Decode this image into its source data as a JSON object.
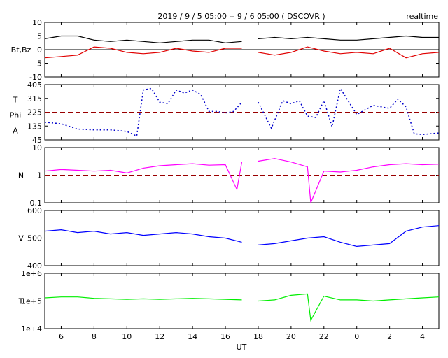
{
  "header": {
    "title": "2019 / 9 / 5  05:00 -- 9 / 6  05:00 ( DSCOVR )",
    "mode": "realtime"
  },
  "x_axis": {
    "label": "UT",
    "tick_labels": [
      "6",
      "8",
      "10",
      "12",
      "14",
      "16",
      "18",
      "20",
      "22",
      "0",
      "2",
      "4"
    ],
    "tick_hours": [
      6,
      8,
      10,
      12,
      14,
      16,
      18,
      20,
      22,
      24,
      26,
      28
    ],
    "range_hours": [
      5,
      29
    ],
    "data_gap_hours": [
      17.3,
      17.7
    ]
  },
  "colors": {
    "bt": "#000000",
    "bz": "#e00000",
    "phi": "#0000cc",
    "n": "#ff00ff",
    "v": "#0000ff",
    "t": "#00ee00",
    "ref_line": "#990000"
  },
  "panels": [
    {
      "id": "mag",
      "label": "Bt,Bz",
      "tick_labels": [
        "10",
        "5",
        "0",
        "-5",
        "-10"
      ],
      "ymin": -10,
      "ymax": 10,
      "ref": 0,
      "ref_style": "solid",
      "log": false
    },
    {
      "id": "phi",
      "label_lines": [
        "T",
        "Phi",
        "A"
      ],
      "tick_labels": [
        "405",
        "315",
        "225",
        "135",
        "45"
      ],
      "ymin": 45,
      "ymax": 405,
      "ref": 225,
      "ref_style": "dashed",
      "log": false
    },
    {
      "id": "n",
      "label": "N",
      "tick_labels": [
        "10",
        "1",
        "0.1"
      ],
      "ymin": 0.1,
      "ymax": 10,
      "ref": 1,
      "ref_style": "dashed",
      "log": true
    },
    {
      "id": "v",
      "label": "V",
      "tick_labels": [
        "600",
        "500",
        "400"
      ],
      "ymin": 400,
      "ymax": 600,
      "ref": null,
      "ref_style": "none",
      "log": false
    },
    {
      "id": "t",
      "label": "T",
      "tick_labels": [
        "1e+6",
        "1e+5",
        "1e+4"
      ],
      "ymin": 10000,
      "ymax": 1000000,
      "ref": 100000,
      "ref_style": "dashed",
      "log": true
    }
  ],
  "chart_data": {
    "type": "line",
    "x_unit": "UT hours since 2019-09-05 00:00",
    "series": [
      {
        "name": "Bt",
        "panel": "mag",
        "x": [
          5,
          6,
          7,
          8,
          9,
          10,
          11,
          12,
          13,
          14,
          15,
          16,
          17,
          18,
          19,
          20,
          21,
          22,
          23,
          24,
          25,
          26,
          27,
          28,
          29
        ],
        "y": [
          4.0,
          5.0,
          5.0,
          3.5,
          3.0,
          3.5,
          3.0,
          2.5,
          3.0,
          3.5,
          3.5,
          2.5,
          3.0,
          4.0,
          4.5,
          4.0,
          4.5,
          4.0,
          3.5,
          3.5,
          4.0,
          4.5,
          5.0,
          4.5,
          4.5
        ]
      },
      {
        "name": "Bz",
        "panel": "mag",
        "x": [
          5,
          6,
          7,
          8,
          9,
          10,
          11,
          12,
          13,
          14,
          15,
          16,
          17,
          18,
          19,
          20,
          21,
          22,
          23,
          24,
          25,
          26,
          27,
          28,
          29
        ],
        "y": [
          -3.0,
          -2.5,
          -2.0,
          1.0,
          0.5,
          -1.0,
          -1.5,
          -1.0,
          0.5,
          -0.5,
          -1.0,
          0.5,
          0.5,
          -1.0,
          -2.0,
          -1.0,
          1.0,
          -0.5,
          -1.5,
          -1.0,
          -1.5,
          0.5,
          -3.0,
          -1.5,
          -1.0
        ]
      },
      {
        "name": "Phi",
        "panel": "phi",
        "x": [
          5,
          6,
          7,
          8,
          9,
          10,
          10.6,
          11,
          11.5,
          12,
          12.5,
          13,
          13.5,
          14,
          14.5,
          15,
          15.5,
          16,
          16.5,
          17,
          18,
          18.8,
          19.5,
          20,
          20.5,
          21,
          21.5,
          22,
          22.5,
          23,
          24,
          25,
          26,
          26.5,
          27,
          27.5,
          28,
          29
        ],
        "y": [
          160,
          150,
          115,
          110,
          110,
          100,
          70,
          370,
          380,
          290,
          280,
          370,
          350,
          370,
          340,
          230,
          230,
          220,
          230,
          290,
          290,
          120,
          300,
          280,
          300,
          200,
          190,
          300,
          130,
          380,
          210,
          270,
          250,
          310,
          260,
          85,
          80,
          90
        ]
      },
      {
        "name": "N",
        "panel": "n",
        "x": [
          5,
          6,
          7,
          8,
          9,
          10,
          11,
          12,
          13,
          14,
          15,
          16,
          16.7,
          17,
          18,
          19,
          20,
          21,
          21.2,
          22,
          23,
          24,
          25,
          26,
          27,
          28,
          29
        ],
        "y": [
          1.4,
          1.6,
          1.5,
          1.4,
          1.5,
          1.2,
          1.8,
          2.2,
          2.4,
          2.6,
          2.3,
          2.4,
          0.3,
          3.0,
          3.2,
          4.0,
          3.0,
          2.0,
          0.1,
          1.4,
          1.3,
          1.5,
          2.0,
          2.4,
          2.6,
          2.4,
          2.5
        ]
      },
      {
        "name": "V",
        "panel": "v",
        "x": [
          5,
          6,
          7,
          8,
          9,
          10,
          11,
          12,
          13,
          14,
          15,
          16,
          17,
          18,
          19,
          20,
          21,
          22,
          23,
          24,
          25,
          26,
          27,
          28,
          29
        ],
        "y": [
          525,
          530,
          520,
          525,
          515,
          520,
          510,
          515,
          520,
          515,
          505,
          500,
          485,
          475,
          480,
          490,
          500,
          505,
          485,
          470,
          475,
          480,
          525,
          540,
          545
        ]
      },
      {
        "name": "T",
        "panel": "t",
        "x": [
          5,
          6,
          7,
          8,
          9,
          10,
          11,
          12,
          13,
          14,
          15,
          16,
          17,
          18,
          19,
          20,
          21,
          21.2,
          22,
          23,
          24,
          25,
          26,
          27,
          28,
          29
        ],
        "y": [
          130000,
          140000,
          140000,
          125000,
          120000,
          115000,
          120000,
          115000,
          120000,
          125000,
          120000,
          115000,
          110000,
          100000,
          110000,
          160000,
          180000,
          20000,
          150000,
          110000,
          110000,
          100000,
          110000,
          120000,
          130000,
          140000
        ]
      }
    ]
  }
}
